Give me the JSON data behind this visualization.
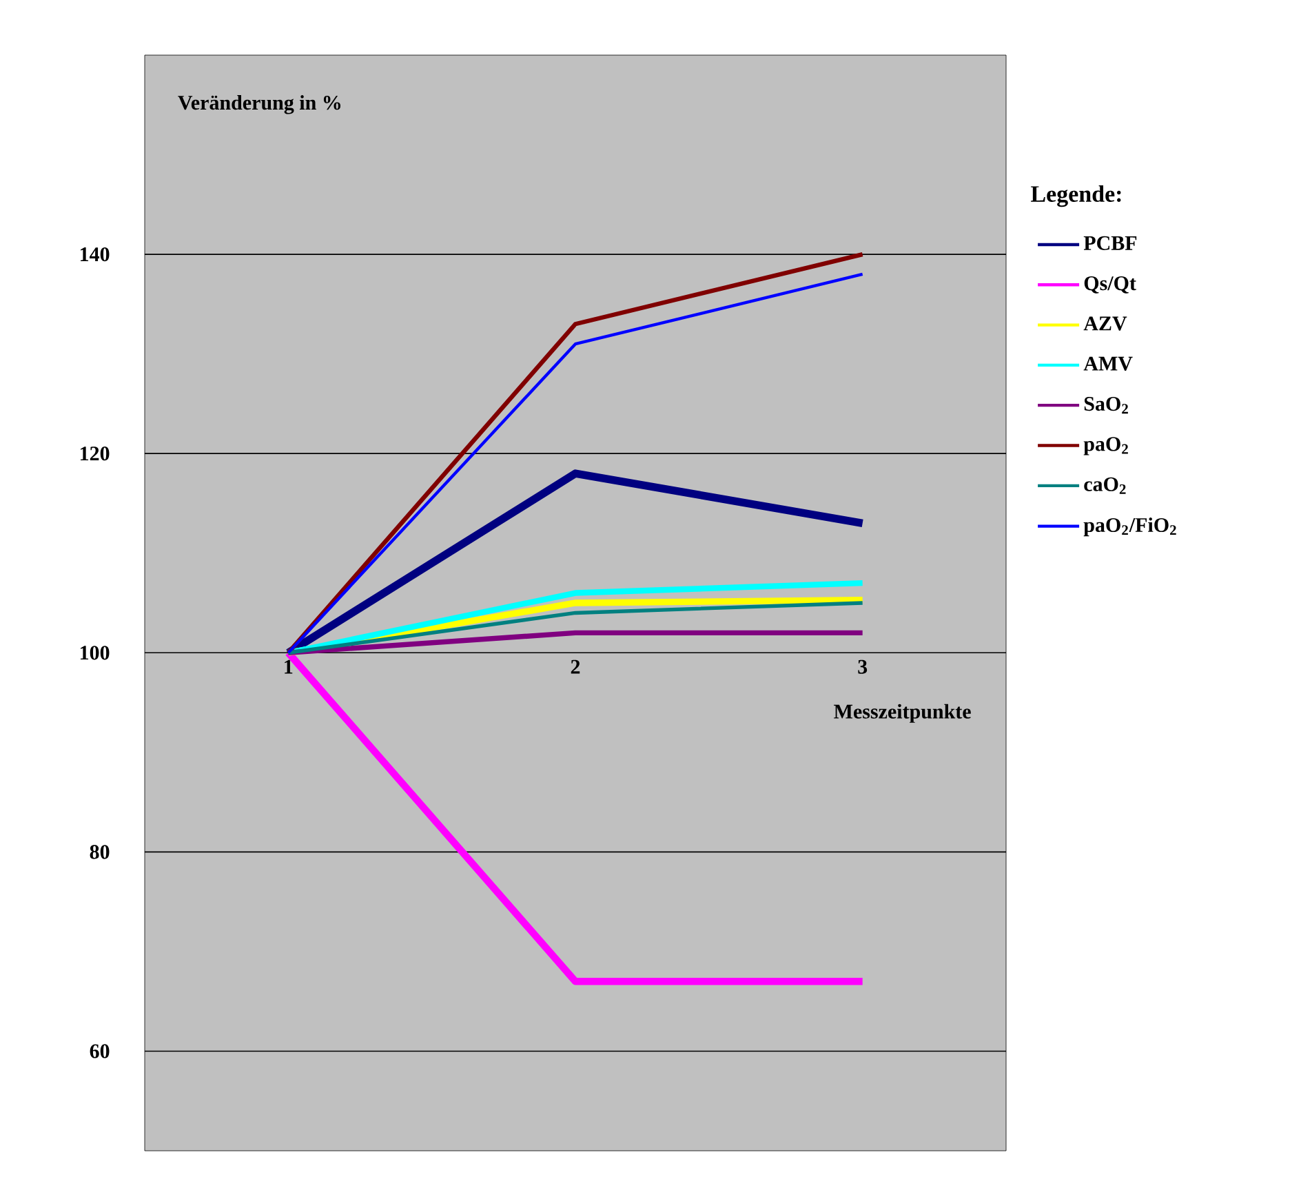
{
  "chart_data": {
    "type": "line",
    "ylabel": "Veränderung in %",
    "xlabel": "Messzeitpunkte",
    "legend_title": "Legende:",
    "categories": [
      "1",
      "2",
      "3"
    ],
    "series": [
      {
        "name": "PCBF",
        "color": "#000080",
        "values": [
          100,
          118,
          113
        ]
      },
      {
        "name": "Qs/Qt",
        "color": "#ff00ff",
        "values": [
          100,
          67,
          67
        ]
      },
      {
        "name": "AZV",
        "color": "#ffff00",
        "values": [
          100,
          105,
          105.3
        ]
      },
      {
        "name": "AMV",
        "color": "#00ffff",
        "values": [
          100,
          106,
          107
        ]
      },
      {
        "name": "SaO$_{2}$",
        "color": "#800080",
        "values": [
          100,
          102,
          102
        ]
      },
      {
        "name": "paO$_{2}$",
        "color": "#800000",
        "values": [
          100,
          133,
          140
        ]
      },
      {
        "name": "caO$_{2}$",
        "color": "#008080",
        "values": [
          100,
          104,
          105
        ]
      },
      {
        "name": "paO$_{2}$/FiO$_{2}$",
        "color": "#0000ff",
        "values": [
          100,
          131,
          138
        ]
      }
    ],
    "ylim": [
      50,
      160
    ],
    "yticks": [
      60,
      80,
      100,
      120,
      140
    ],
    "grid": "y",
    "legend": "right",
    "marker": "none",
    "line_style": "solid"
  }
}
